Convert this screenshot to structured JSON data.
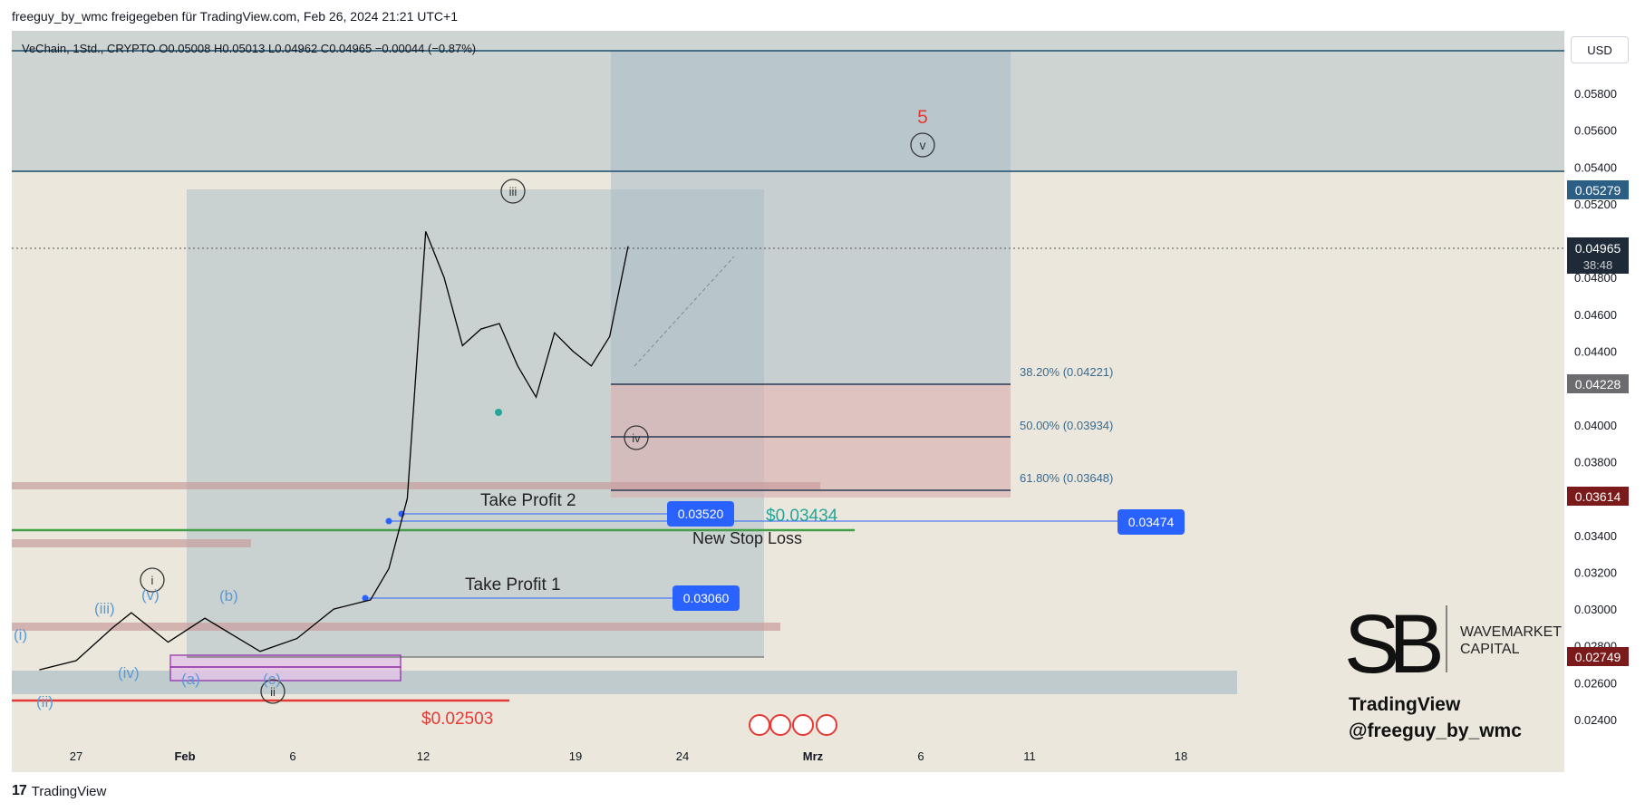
{
  "header": {
    "published_by": "freeguy_by_wmc freigegeben für TradingView.com, Feb 26, 2024 21:21 UTC+1"
  },
  "legend": {
    "symbol_line": "VeChain, 1Std., CRYPTO  O0.05008  H0.05013  L0.04962  C0.04965  −0.00044 (−0.87%)"
  },
  "currency": "USD",
  "chart_data": {
    "type": "line",
    "title": "",
    "x_ticks": [
      "27",
      "Feb",
      "6",
      "12",
      "19",
      "24",
      "Mrz",
      "6",
      "11",
      "18"
    ],
    "y_ticks": [
      "0.05800",
      "0.05600",
      "0.05400",
      "0.05200",
      "0.04800",
      "0.04600",
      "0.04400",
      "0.04000",
      "0.03800",
      "0.03400",
      "0.03200",
      "0.03000",
      "0.02800",
      "0.02600",
      "0.02400"
    ],
    "y_range": [
      0.023,
      0.06
    ],
    "price_labels": {
      "top_level": "0.05279",
      "last_price": "0.04965",
      "countdown": "38:48",
      "fib_level_marker": "0.04228",
      "stop_zone_marker": "0.03614",
      "lower_marker": "0.02749"
    },
    "fib_levels": [
      {
        "label": "38.20% (0.04221)",
        "value": 0.04221
      },
      {
        "label": "50.00% (0.03934)",
        "value": 0.03934
      },
      {
        "label": "61.80% (0.03648)",
        "value": 0.03648
      }
    ],
    "targets": [
      {
        "label": "0.03520",
        "value": 0.0352
      },
      {
        "label": "0.03474",
        "value": 0.03474
      },
      {
        "label": "0.03060",
        "value": 0.0306
      }
    ],
    "annotations": {
      "take_profit_2": "Take Profit 2",
      "take_profit_1": "Take Profit 1",
      "new_stop_loss": "New Stop Loss",
      "stop_loss_value": "$0.03434",
      "low_value": "$0.02503",
      "wave_5": "5",
      "wave_v": "v",
      "wave_iii": "iii",
      "wave_iv": "iv",
      "wave_ii": "ii",
      "wave_i": "i",
      "sub_i": "(i)",
      "sub_ii": "(ii)",
      "sub_iii": "(iii)",
      "sub_iv": "(iv)",
      "sub_v": "(v)",
      "sub_a": "(a)",
      "sub_b": "(b)",
      "sub_c": "(c)"
    },
    "price_series": [
      {
        "date": "Jan 25",
        "close": 0.0267
      },
      {
        "date": "Jan 27",
        "close": 0.0272
      },
      {
        "date": "Jan 29",
        "close": 0.029
      },
      {
        "date": "Jan 30",
        "close": 0.0298
      },
      {
        "date": "Feb 1",
        "close": 0.0282
      },
      {
        "date": "Feb 3",
        "close": 0.0295
      },
      {
        "date": "Feb 6",
        "close": 0.0277
      },
      {
        "date": "Feb 8",
        "close": 0.0284
      },
      {
        "date": "Feb 10",
        "close": 0.03
      },
      {
        "date": "Feb 12",
        "close": 0.0305
      },
      {
        "date": "Feb 13",
        "close": 0.0322
      },
      {
        "date": "Feb 14",
        "close": 0.036
      },
      {
        "date": "Feb 15",
        "close": 0.0505
      },
      {
        "date": "Feb 16",
        "close": 0.048
      },
      {
        "date": "Feb 17",
        "close": 0.0443
      },
      {
        "date": "Feb 18",
        "close": 0.0452
      },
      {
        "date": "Feb 19",
        "close": 0.0455
      },
      {
        "date": "Feb 20",
        "close": 0.0432
      },
      {
        "date": "Feb 21",
        "close": 0.0415
      },
      {
        "date": "Feb 22",
        "close": 0.045
      },
      {
        "date": "Feb 23",
        "close": 0.044
      },
      {
        "date": "Feb 24",
        "close": 0.0432
      },
      {
        "date": "Feb 25",
        "close": 0.0448
      },
      {
        "date": "Feb 26",
        "close": 0.0497
      }
    ]
  },
  "branding": {
    "logo_initials": "SB",
    "logo_line1": "WAVEMARKET",
    "logo_line2": "CAPITAL",
    "tradingview_line1": "TradingView",
    "tradingview_line2": "@freeguy_by_wmc",
    "footer": "TradingView"
  },
  "colors": {
    "background": "#ebe7dd",
    "blue_zone": "#a9bcc6",
    "pink_zone": "#d8b4b4",
    "target_blue": "#2962ff",
    "stop_green": "#26a69a",
    "red": "#e53935",
    "wave_blue": "#5b9bd5"
  }
}
